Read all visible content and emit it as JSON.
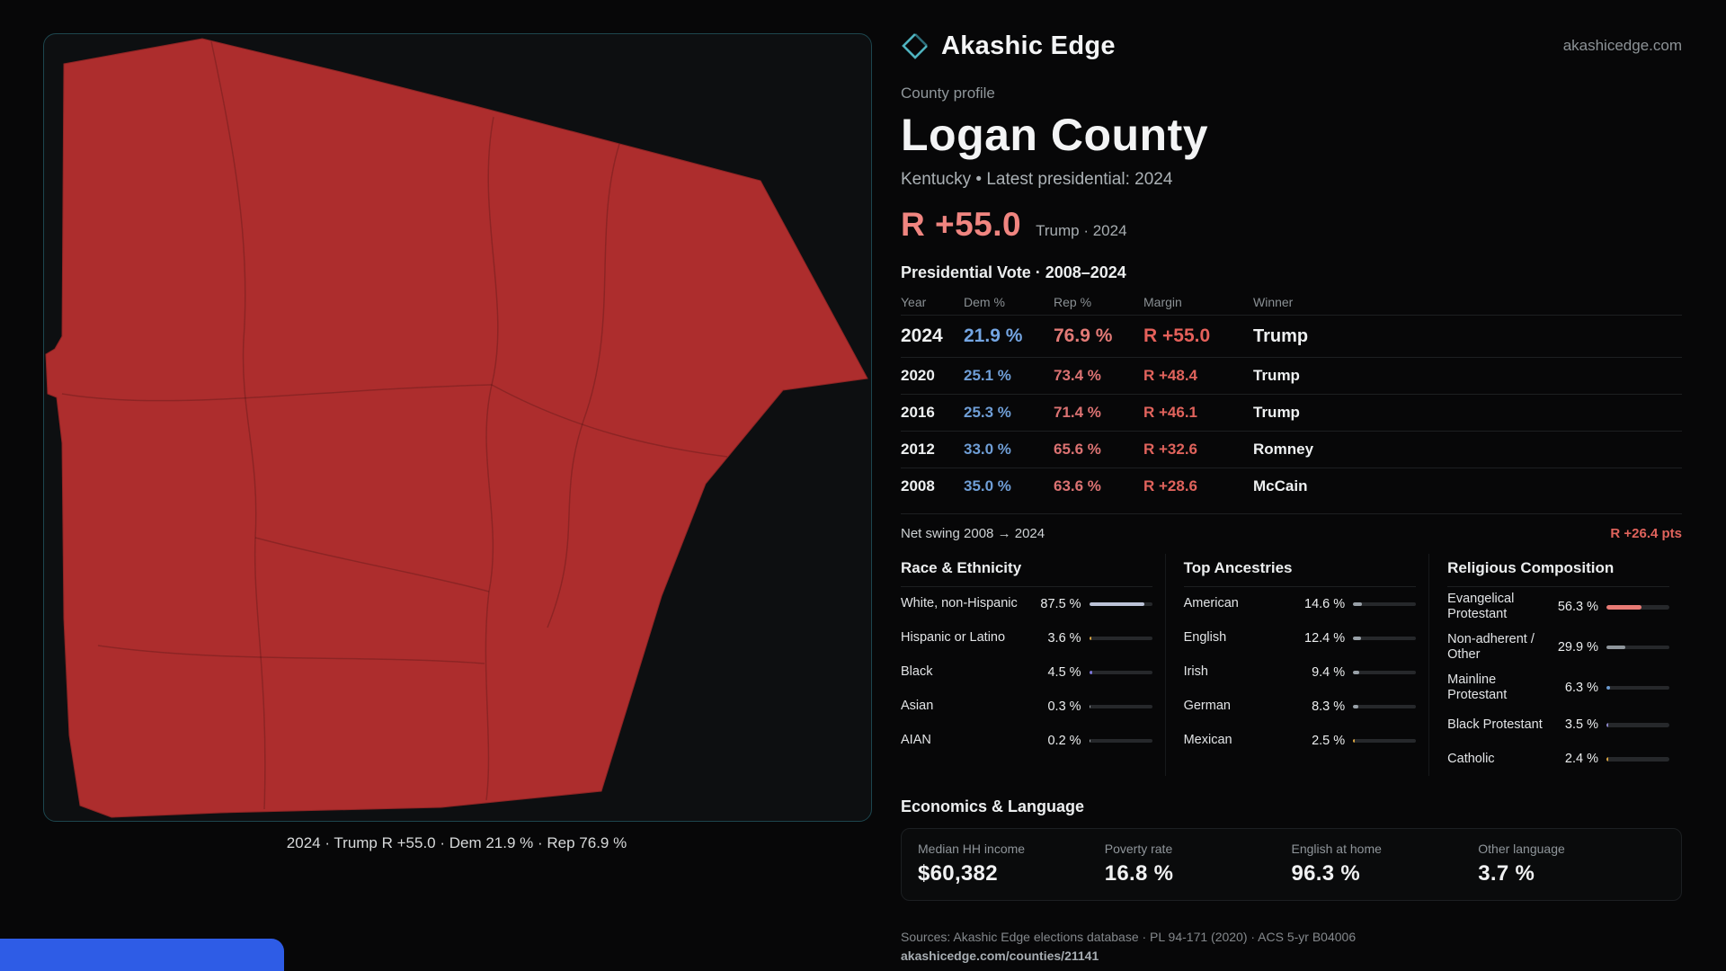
{
  "header": {
    "brand": "Akashic Edge",
    "domain": "akashicedge.com"
  },
  "map": {
    "caption": "2024 · Trump R +55.0 · Dem 21.9 % · Rep 76.9 %",
    "region_name": "Logan County"
  },
  "profile": {
    "kicker": "County profile",
    "title": "Logan County",
    "subtitle": "Kentucky • Latest presidential: 2024",
    "margin_big": "R +55.0",
    "margin_context": "Trump · 2024"
  },
  "vote_table": {
    "title": "Presidential Vote · 2008–2024",
    "columns": [
      "Year",
      "Dem %",
      "Rep %",
      "Margin",
      "Winner"
    ],
    "rows": [
      {
        "year": "2024",
        "dem": "21.9 %",
        "rep": "76.9 %",
        "margin": "R +55.0",
        "winner": "Trump"
      },
      {
        "year": "2020",
        "dem": "25.1 %",
        "rep": "73.4 %",
        "margin": "R +48.4",
        "winner": "Trump"
      },
      {
        "year": "2016",
        "dem": "25.3 %",
        "rep": "71.4 %",
        "margin": "R +46.1",
        "winner": "Trump"
      },
      {
        "year": "2012",
        "dem": "33.0 %",
        "rep": "65.6 %",
        "margin": "R +32.6",
        "winner": "Romney"
      },
      {
        "year": "2008",
        "dem": "35.0 %",
        "rep": "63.6 %",
        "margin": "R +28.6",
        "winner": "McCain"
      }
    ],
    "net_swing_label": "Net swing 2008 → 2024",
    "net_swing_value": "R +26.4 pts"
  },
  "demographics": {
    "race": {
      "title": "Race & Ethnicity",
      "rows": [
        {
          "label": "White, non-Hispanic",
          "value": "87.5 %",
          "pct": 87.5,
          "color": "#bcc3d8"
        },
        {
          "label": "Hispanic or Latino",
          "value": "3.6 %",
          "pct": 3.6,
          "color": "#d9a441"
        },
        {
          "label": "Black",
          "value": "4.5 %",
          "pct": 4.5,
          "color": "#7b74d8"
        },
        {
          "label": "Asian",
          "value": "0.3 %",
          "pct": 0.3,
          "color": "#9aa1a7"
        },
        {
          "label": "AIAN",
          "value": "0.2 %",
          "pct": 0.2,
          "color": "#9aa1a7"
        }
      ]
    },
    "ancestries": {
      "title": "Top Ancestries",
      "rows": [
        {
          "label": "American",
          "value": "14.6 %",
          "pct": 14.6,
          "color": "#98a0a7"
        },
        {
          "label": "English",
          "value": "12.4 %",
          "pct": 12.4,
          "color": "#98a0a7"
        },
        {
          "label": "Irish",
          "value": "9.4 %",
          "pct": 9.4,
          "color": "#98a0a7"
        },
        {
          "label": "German",
          "value": "8.3 %",
          "pct": 8.3,
          "color": "#98a0a7"
        },
        {
          "label": "Mexican",
          "value": "2.5 %",
          "pct": 2.5,
          "color": "#d9a441"
        }
      ]
    },
    "religion": {
      "title": "Religious Composition",
      "rows": [
        {
          "label": "Evangelical Protestant",
          "value": "56.3 %",
          "pct": 56.3,
          "color": "#e87a74"
        },
        {
          "label": "Non-adherent / Other",
          "value": "29.9 %",
          "pct": 29.9,
          "color": "#8f969c"
        },
        {
          "label": "Mainline Protestant",
          "value": "6.3 %",
          "pct": 6.3,
          "color": "#6a9ad0"
        },
        {
          "label": "Black Protestant",
          "value": "3.5 %",
          "pct": 3.5,
          "color": "#8c86c9"
        },
        {
          "label": "Catholic",
          "value": "2.4 %",
          "pct": 2.4,
          "color": "#d9a441"
        }
      ]
    }
  },
  "economics": {
    "title": "Economics & Language",
    "stats": [
      {
        "label": "Median HH income",
        "value": "$60,382"
      },
      {
        "label": "Poverty rate",
        "value": "16.8 %"
      },
      {
        "label": "English at home",
        "value": "96.3 %"
      },
      {
        "label": "Other language",
        "value": "3.7 %"
      }
    ]
  },
  "footer": {
    "sources": "Sources: Akashic Edge elections database · PL 94-171 (2020) · ACS 5-yr B04006",
    "permalink": "akashicedge.com/counties/21141"
  },
  "colors": {
    "map_fill": "#ad2d2d",
    "dem_blue": "#6f9ed6",
    "rep_red": "#db7272",
    "margin_red": "#e0635c",
    "headline_red": "#f08580",
    "accent_teal": "#45a4b0",
    "bottom_bar_blue": "#2e5ce6"
  }
}
